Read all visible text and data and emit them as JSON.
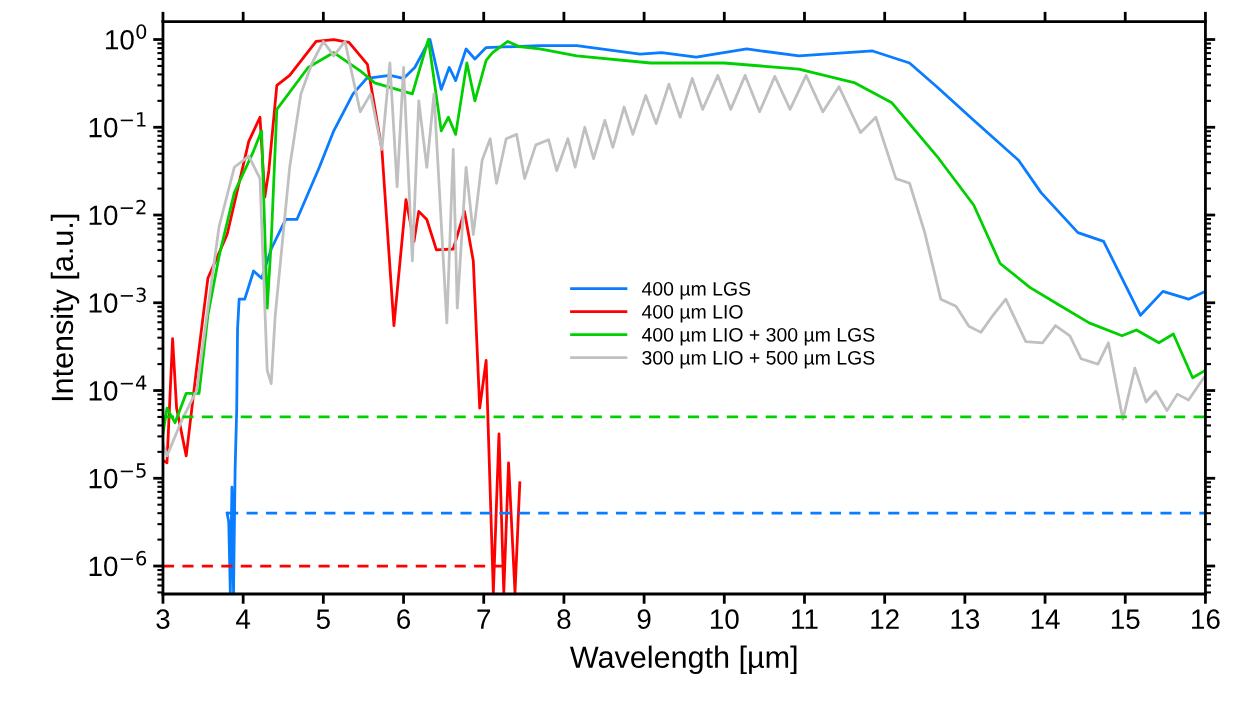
{
  "chart_data": {
    "type": "line",
    "xlabel": "Wavelength [µm]",
    "ylabel": "Intensity [a.u.]",
    "log": "y",
    "grid": false,
    "legend": "center right",
    "line_style": "solid",
    "marker": "none",
    "xlim": [
      3,
      16
    ],
    "xticks": [
      3,
      4,
      5,
      6,
      7,
      8,
      9,
      10,
      11,
      12,
      13,
      14,
      15,
      16
    ],
    "ylim": [
      4.8e-07,
      1.6
    ],
    "yticks": [
      {
        "value": 1e-06,
        "label": "10$^{−6}$"
      },
      {
        "value": 1e-05,
        "label": "10$^{−5}$"
      },
      {
        "value": 0.0001,
        "label": "10$^{−4}$"
      },
      {
        "value": 0.001,
        "label": "10$^{−3}$"
      },
      {
        "value": 0.01,
        "label": "10$^{−2}$"
      },
      {
        "value": 0.1,
        "label": "10$^{−1}$"
      },
      {
        "value": 1,
        "label": "10$^{0}$"
      }
    ],
    "series": [
      {
        "name": "400 µm LGS",
        "color": "#0a7cff",
        "x": [
          3.8,
          3.82,
          3.84,
          3.86,
          3.88,
          3.9,
          3.92,
          3.93,
          3.95,
          4.02,
          4.13,
          4.23,
          4.35,
          4.53,
          4.67,
          4.95,
          5.13,
          5.37,
          5.54,
          5.83,
          6.0,
          6.14,
          6.33,
          6.47,
          6.57,
          6.65,
          6.78,
          6.89,
          7.03,
          7.7,
          8.16,
          8.95,
          9.22,
          9.65,
          10.28,
          10.93,
          11.85,
          12.31,
          12.65,
          13.11,
          13.67,
          13.95,
          14.41,
          14.73,
          14.96,
          15.19,
          15.47,
          15.79,
          16.0
        ],
        "values": [
          4e-06,
          3.2e-06,
          5e-07,
          7.9e-06,
          5e-07,
          1.3e-05,
          6.3e-05,
          0.0005,
          0.0011,
          0.0011,
          0.0023,
          0.0019,
          0.0041,
          0.0089,
          0.0089,
          0.035,
          0.091,
          0.24,
          0.36,
          0.39,
          0.36,
          0.48,
          1.0,
          0.27,
          0.48,
          0.34,
          0.78,
          0.6,
          0.81,
          0.85,
          0.85,
          0.68,
          0.71,
          0.63,
          0.78,
          0.65,
          0.74,
          0.54,
          0.29,
          0.12,
          0.042,
          0.018,
          0.0063,
          0.005,
          0.0019,
          0.00072,
          0.00135,
          0.0011,
          0.00135
        ]
      },
      {
        "name": "400 µm LIO",
        "color": "#ff0000",
        "x": [
          3.0,
          3.05,
          3.12,
          3.17,
          3.29,
          3.42,
          3.56,
          3.8,
          4.07,
          4.21,
          4.27,
          4.32,
          4.42,
          4.58,
          4.91,
          5.13,
          5.32,
          5.55,
          5.73,
          5.88,
          6.03,
          6.13,
          6.19,
          6.29,
          6.41,
          6.62,
          6.76,
          6.87,
          6.95,
          7.03,
          7.12,
          7.19,
          7.25,
          7.31,
          7.39,
          7.45
        ],
        "values": [
          1.6e-05,
          1.5e-05,
          0.00039,
          6.3e-05,
          1.8e-05,
          0.00018,
          0.0019,
          0.006,
          0.069,
          0.13,
          0.016,
          0.032,
          0.3,
          0.39,
          0.95,
          1.0,
          0.93,
          0.52,
          0.056,
          0.00055,
          0.015,
          0.005,
          0.011,
          0.0089,
          0.004,
          0.0041,
          0.011,
          0.003,
          6.3e-05,
          0.00022,
          5e-07,
          3.2e-05,
          5e-07,
          1.5e-05,
          5e-07,
          8.9e-06
        ]
      },
      {
        "name": "400 µm LIO + 300 µm LGS",
        "color": "#00d000",
        "x": [
          3.0,
          3.05,
          3.15,
          3.29,
          3.45,
          3.56,
          3.7,
          3.89,
          4.12,
          4.23,
          4.3,
          4.35,
          4.42,
          4.81,
          5.13,
          5.46,
          5.64,
          6.11,
          6.31,
          6.47,
          6.56,
          6.65,
          6.79,
          6.89,
          7.03,
          7.11,
          7.3,
          7.44,
          7.7,
          8.16,
          9.08,
          10.0,
          10.93,
          11.63,
          12.09,
          12.65,
          13.11,
          13.44,
          13.81,
          14.17,
          14.55,
          14.96,
          15.14,
          15.42,
          15.6,
          15.84,
          16.0
        ],
        "values": [
          3.2e-05,
          6.3e-05,
          4.3e-05,
          9.3e-05,
          9.3e-05,
          0.00072,
          0.0034,
          0.018,
          0.051,
          0.091,
          0.00087,
          0.005,
          0.16,
          0.48,
          0.71,
          0.44,
          0.32,
          0.24,
          1.0,
          0.091,
          0.13,
          0.083,
          0.54,
          0.2,
          0.58,
          0.71,
          0.95,
          0.83,
          0.78,
          0.65,
          0.54,
          0.54,
          0.46,
          0.32,
          0.19,
          0.047,
          0.013,
          0.0028,
          0.0015,
          0.00095,
          0.00059,
          0.00042,
          0.00049,
          0.00035,
          0.00044,
          0.00014,
          0.00017
        ]
      },
      {
        "name": "300 µm LIO + 500 µm LGS",
        "color": "#c0c0c0",
        "x": [
          3.0,
          3.05,
          3.24,
          3.42,
          3.56,
          3.7,
          3.89,
          4.07,
          4.21,
          4.3,
          4.35,
          4.4,
          4.49,
          4.58,
          4.72,
          4.86,
          5.0,
          5.13,
          5.27,
          5.46,
          5.59,
          5.73,
          5.83,
          5.92,
          6.0,
          6.11,
          6.19,
          6.29,
          6.38,
          6.54,
          6.62,
          6.67,
          6.78,
          6.87,
          6.98,
          7.08,
          7.16,
          7.28,
          7.41,
          7.51,
          7.65,
          7.81,
          7.91,
          8.05,
          8.14,
          8.26,
          8.37,
          8.51,
          8.61,
          8.75,
          8.86,
          9.02,
          9.15,
          9.31,
          9.45,
          9.6,
          9.73,
          9.92,
          10.08,
          10.26,
          10.44,
          10.63,
          10.82,
          11.02,
          11.23,
          11.43,
          11.7,
          11.89,
          12.14,
          12.31,
          12.5,
          12.7,
          12.89,
          13.05,
          13.2,
          13.35,
          13.51,
          13.76,
          13.97,
          14.13,
          14.31,
          14.45,
          14.66,
          14.79,
          14.97,
          15.12,
          15.26,
          15.38,
          15.52,
          15.65,
          15.79,
          15.98
        ],
        "values": [
          2.5e-05,
          1.8e-05,
          4.7e-05,
          0.0001,
          0.00087,
          0.0074,
          0.035,
          0.047,
          0.026,
          0.00017,
          0.00012,
          0.00072,
          0.005,
          0.035,
          0.24,
          0.54,
          0.95,
          0.65,
          0.95,
          0.15,
          0.24,
          0.056,
          0.54,
          0.021,
          0.48,
          0.003,
          0.2,
          0.035,
          0.24,
          0.00059,
          0.056,
          0.00087,
          0.035,
          0.006,
          0.042,
          0.074,
          0.023,
          0.074,
          0.083,
          0.026,
          0.063,
          0.072,
          0.032,
          0.074,
          0.035,
          0.1,
          0.044,
          0.12,
          0.059,
          0.17,
          0.083,
          0.23,
          0.11,
          0.31,
          0.13,
          0.36,
          0.16,
          0.39,
          0.16,
          0.39,
          0.15,
          0.38,
          0.16,
          0.39,
          0.15,
          0.29,
          0.087,
          0.13,
          0.026,
          0.023,
          0.0063,
          0.0011,
          0.00091,
          0.00054,
          0.00046,
          0.00072,
          0.0011,
          0.00036,
          0.00035,
          0.00055,
          0.00042,
          0.00023,
          0.0002,
          0.00035,
          4.7e-05,
          0.00018,
          7.4e-05,
          9.8e-05,
          5.9e-05,
          9.1e-05,
          7.8e-05,
          0.00014
        ]
      },
      {
        "color": "#00d000",
        "line_style": "dashed",
        "x": [
          3.0,
          16.0
        ],
        "values": [
          5e-05,
          5e-05
        ]
      },
      {
        "color": "#0a7cff",
        "line_style": "dashed",
        "x": [
          3.8,
          16.0
        ],
        "values": [
          4e-06,
          4e-06
        ]
      },
      {
        "color": "#ff0000",
        "line_style": "dashed",
        "x": [
          3.0,
          7.4
        ],
        "values": [
          1e-06,
          1e-06
        ]
      }
    ]
  }
}
